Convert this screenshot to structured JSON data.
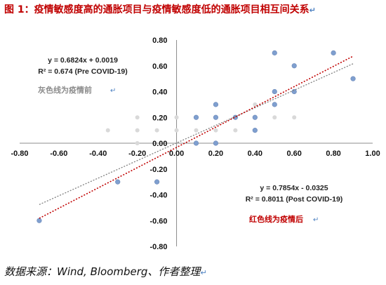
{
  "title": "图 1：疫情敏感度高的通胀项目与疫情敏感度低的通胀项目相互间关系",
  "source": "数据来源：Wind, Bloomberg、作者整理",
  "return_mark": "↵",
  "chart_data": {
    "type": "scatter",
    "title": "图 1：疫情敏感度高的通胀项目与疫情敏感度低的通胀项目相互间关系",
    "xlim": [
      -0.8,
      1.0
    ],
    "ylim": [
      -0.8,
      0.8
    ],
    "x_ticks": [
      "-0.80",
      "-0.60",
      "-0.40",
      "-0.20",
      "0.00",
      "0.20",
      "0.40",
      "0.60",
      "0.80",
      "1.00"
    ],
    "y_ticks": [
      "-0.80",
      "-0.60",
      "-0.40",
      "-0.20",
      "0.00",
      "0.20",
      "0.40",
      "0.60",
      "0.80"
    ],
    "x_tick_values": [
      -0.8,
      -0.6,
      -0.4,
      -0.2,
      0.0,
      0.2,
      0.4,
      0.6,
      0.8,
      1.0
    ],
    "y_tick_values": [
      -0.8,
      -0.6,
      -0.4,
      -0.2,
      0.0,
      0.2,
      0.4,
      0.6,
      0.8
    ],
    "grid": false,
    "series": [
      {
        "color": "#d9d9d9",
        "points": [
          {
            "x": -0.35,
            "y": 0.1
          },
          {
            "x": -0.2,
            "y": 0.1
          },
          {
            "x": -0.1,
            "y": 0.1
          },
          {
            "x": -0.2,
            "y": 0.2
          },
          {
            "x": -0.2,
            "y": 0.0
          },
          {
            "x": 0.0,
            "y": 0.2
          },
          {
            "x": 0.0,
            "y": 0.1
          },
          {
            "x": 0.1,
            "y": 0.2
          },
          {
            "x": 0.1,
            "y": 0.1
          },
          {
            "x": 0.2,
            "y": 0.2
          },
          {
            "x": 0.2,
            "y": 0.1
          },
          {
            "x": 0.3,
            "y": 0.2
          },
          {
            "x": 0.3,
            "y": 0.1
          },
          {
            "x": 0.4,
            "y": 0.3
          },
          {
            "x": 0.4,
            "y": 0.2
          },
          {
            "x": 0.5,
            "y": 0.2
          },
          {
            "x": 0.6,
            "y": 0.2
          }
        ]
      },
      {
        "color": "#7f9fcf",
        "points": [
          {
            "x": -0.7,
            "y": -0.6
          },
          {
            "x": -0.3,
            "y": -0.3
          },
          {
            "x": -0.1,
            "y": -0.3
          },
          {
            "x": 0.1,
            "y": 0.0
          },
          {
            "x": 0.1,
            "y": 0.2
          },
          {
            "x": 0.2,
            "y": 0.0
          },
          {
            "x": 0.2,
            "y": 0.2
          },
          {
            "x": 0.2,
            "y": 0.3
          },
          {
            "x": 0.3,
            "y": 0.2
          },
          {
            "x": 0.4,
            "y": 0.1
          },
          {
            "x": 0.4,
            "y": 0.2
          },
          {
            "x": 0.5,
            "y": 0.3
          },
          {
            "x": 0.5,
            "y": 0.4
          },
          {
            "x": 0.5,
            "y": 0.7
          },
          {
            "x": 0.6,
            "y": 0.4
          },
          {
            "x": 0.6,
            "y": 0.6
          },
          {
            "x": 0.8,
            "y": 0.7
          },
          {
            "x": 0.9,
            "y": 0.5
          }
        ]
      }
    ],
    "trendlines": [
      {
        "slope": 0.6824,
        "intercept": 0.0019,
        "x_range": [
          -0.7,
          0.9
        ],
        "color": "#808080",
        "style": "dotted"
      },
      {
        "slope": 0.7854,
        "intercept": -0.0325,
        "x_range": [
          -0.7,
          0.9
        ],
        "color": "#c00000",
        "style": "dotted"
      }
    ],
    "annotations": [
      {
        "lines": [
          "y = 0.6824x + 0.0019",
          "R² = 0.674 (Pre COVID-19)"
        ],
        "color": "#222222",
        "bold": true
      },
      {
        "lines": [
          "灰色线为疫情前"
        ],
        "color": "#8c8c8c",
        "bold": true
      },
      {
        "lines": [
          "y = 0.7854x - 0.0325",
          "R² = 0.8011 (Post COVID-19)"
        ],
        "color": "#222222",
        "bold": true
      },
      {
        "lines": [
          "红色线为疫情后"
        ],
        "color": "#c00000",
        "bold": true
      }
    ]
  }
}
